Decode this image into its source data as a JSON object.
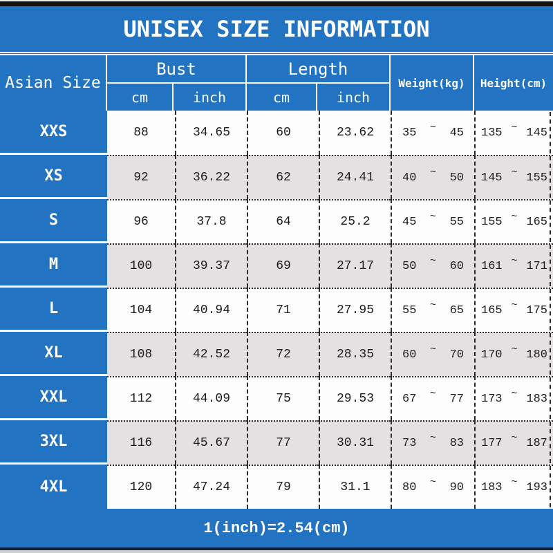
{
  "title": "UNISEX SIZE INFORMATION",
  "footer_note": "1(inch)=2.54(cm)",
  "colors": {
    "blue": "#2273c1",
    "row_white": "#fdfdfd",
    "row_gray": "#e3e1e2",
    "border_dots": "#2b2b2b",
    "text_dark": "#1c1c1c",
    "text_white": "#ffffff"
  },
  "table": {
    "size_col_header": "Asian Size",
    "groups": [
      {
        "label": "Bust",
        "subs": [
          "cm",
          "inch"
        ]
      },
      {
        "label": "Length",
        "subs": [
          "cm",
          "inch"
        ]
      }
    ],
    "weight_header": "Weight(kg)",
    "height_header": "Height(cm)",
    "tilde": "~",
    "rows": [
      {
        "size": "XXS",
        "bust_cm": "88",
        "bust_inch": "34.65",
        "length_cm": "60",
        "length_inch": "23.62",
        "weight_min": "35",
        "weight_max": "45",
        "height_min": "135",
        "height_max": "145"
      },
      {
        "size": "XS",
        "bust_cm": "92",
        "bust_inch": "36.22",
        "length_cm": "62",
        "length_inch": "24.41",
        "weight_min": "40",
        "weight_max": "50",
        "height_min": "145",
        "height_max": "155"
      },
      {
        "size": "S",
        "bust_cm": "96",
        "bust_inch": "37.8",
        "length_cm": "64",
        "length_inch": "25.2",
        "weight_min": "45",
        "weight_max": "55",
        "height_min": "155",
        "height_max": "165"
      },
      {
        "size": "M",
        "bust_cm": "100",
        "bust_inch": "39.37",
        "length_cm": "69",
        "length_inch": "27.17",
        "weight_min": "50",
        "weight_max": "60",
        "height_min": "161",
        "height_max": "171"
      },
      {
        "size": "L",
        "bust_cm": "104",
        "bust_inch": "40.94",
        "length_cm": "71",
        "length_inch": "27.95",
        "weight_min": "55",
        "weight_max": "65",
        "height_min": "165",
        "height_max": "175"
      },
      {
        "size": "XL",
        "bust_cm": "108",
        "bust_inch": "42.52",
        "length_cm": "72",
        "length_inch": "28.35",
        "weight_min": "60",
        "weight_max": "70",
        "height_min": "170",
        "height_max": "180"
      },
      {
        "size": "XXL",
        "bust_cm": "112",
        "bust_inch": "44.09",
        "length_cm": "75",
        "length_inch": "29.53",
        "weight_min": "67",
        "weight_max": "77",
        "height_min": "173",
        "height_max": "183"
      },
      {
        "size": "3XL",
        "bust_cm": "116",
        "bust_inch": "45.67",
        "length_cm": "77",
        "length_inch": "30.31",
        "weight_min": "73",
        "weight_max": "83",
        "height_min": "177",
        "height_max": "187"
      },
      {
        "size": "4XL",
        "bust_cm": "120",
        "bust_inch": "47.24",
        "length_cm": "79",
        "length_inch": "31.1",
        "weight_min": "80",
        "weight_max": "90",
        "height_min": "183",
        "height_max": "193"
      }
    ]
  },
  "chart_data": {
    "type": "table",
    "title": "UNISEX SIZE INFORMATION",
    "columns": [
      "Asian Size",
      "Bust cm",
      "Bust inch",
      "Length cm",
      "Length inch",
      "Weight(kg)",
      "Height(cm)"
    ],
    "rows": [
      [
        "XXS",
        88,
        34.65,
        60,
        23.62,
        "35~45",
        "135~145"
      ],
      [
        "XS",
        92,
        36.22,
        62,
        24.41,
        "40~50",
        "145~155"
      ],
      [
        "S",
        96,
        37.8,
        64,
        25.2,
        "45~55",
        "155~165"
      ],
      [
        "M",
        100,
        39.37,
        69,
        27.17,
        "50~60",
        "161~171"
      ],
      [
        "L",
        104,
        40.94,
        71,
        27.95,
        "55~65",
        "165~175"
      ],
      [
        "XL",
        108,
        42.52,
        72,
        28.35,
        "60~70",
        "170~180"
      ],
      [
        "XXL",
        112,
        44.09,
        75,
        29.53,
        "67~77",
        "173~183"
      ],
      [
        "3XL",
        116,
        45.67,
        77,
        30.31,
        "73~83",
        "177~187"
      ],
      [
        "4XL",
        120,
        47.24,
        79,
        31.1,
        "80~90",
        "183~193"
      ]
    ],
    "note": "1(inch)=2.54(cm)",
    "layout": "blue header and size column, alternating white/gray data rows, dashed column separators, dotted row separators"
  }
}
